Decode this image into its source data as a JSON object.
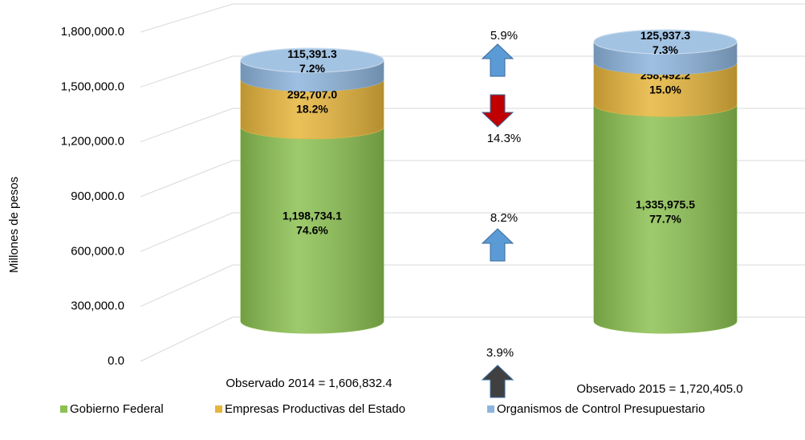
{
  "chart_data": {
    "type": "stacked-cylinder",
    "y_axis_label": "Millones de pesos",
    "categories": [
      "Observado 2014 =  1,606,832.4",
      "Observado 2015 = 1,720,405.0"
    ],
    "series": [
      {
        "name": "Gobierno Federal",
        "color": "#8cc152",
        "values": [
          1198734.1,
          1335975.5
        ],
        "value_labels": [
          "1,198,734.1",
          "1,335,975.5"
        ],
        "share_labels": [
          "74.6%",
          "77.7%"
        ]
      },
      {
        "name": "Empresas Productivas del Estado",
        "color": "#e6b53c",
        "values": [
          292707.0,
          258492.2
        ],
        "value_labels": [
          "292,707.0",
          "258,492.2"
        ],
        "share_labels": [
          "18.2%",
          "15.0%"
        ]
      },
      {
        "name": "Organismos de Control Presupuestario",
        "color": "#8db4dc",
        "values": [
          115391.3,
          125937.3
        ],
        "value_labels": [
          "115,391.3",
          "125,937.3"
        ],
        "share_labels": [
          "7.2%",
          "7.3%"
        ]
      }
    ],
    "ylim": [
      0,
      1800000
    ],
    "yticks": [
      {
        "value": 0,
        "label": "0.0"
      },
      {
        "value": 300000,
        "label": "300,000.0"
      },
      {
        "value": 600000,
        "label": "600,000.0"
      },
      {
        "value": 900000,
        "label": "900,000.0"
      },
      {
        "value": 1200000,
        "label": "1,200,000.0"
      },
      {
        "value": 1500000,
        "label": "1,500,000.0"
      },
      {
        "value": 1800000,
        "label": "1,800,000.0"
      }
    ],
    "grid": true,
    "legend": "bottom",
    "annotations": [
      {
        "text": "5.9%",
        "direction": "up",
        "color": "#5b9bd5"
      },
      {
        "text": "14.3%",
        "direction": "down",
        "color": "#c00000"
      },
      {
        "text": "8.2%",
        "direction": "up",
        "color": "#5b9bd5"
      },
      {
        "text": "3.9%",
        "direction": "up",
        "color": "#404040"
      }
    ]
  }
}
